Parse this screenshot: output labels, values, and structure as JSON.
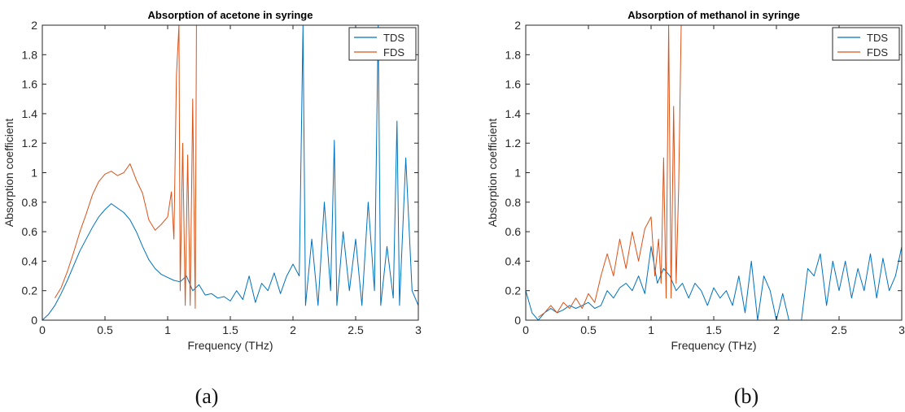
{
  "colors": {
    "tds": "#0072BD",
    "fds": "#D95319",
    "axis": "#262626",
    "frame": "#262626"
  },
  "chart_data": [
    {
      "type": "line",
      "panel_label": "(a)",
      "title": "Absorption of acetone in syringe",
      "xlabel": "Frequency (THz)",
      "ylabel": "Absorption coefficient",
      "xlim": [
        0,
        3
      ],
      "ylim": [
        0,
        2
      ],
      "grid": false,
      "legend_position": "top-right",
      "xticks": [
        "0",
        "0.5",
        "1",
        "1.5",
        "2",
        "2.5",
        "3"
      ],
      "yticks": [
        "0",
        "0.2",
        "0.4",
        "0.6",
        "0.8",
        "1",
        "1.2",
        "1.4",
        "1.6",
        "1.8",
        "2"
      ],
      "series": [
        {
          "name": "TDS",
          "color": "#0072BD",
          "x": [
            0,
            0.05,
            0.1,
            0.15,
            0.2,
            0.25,
            0.3,
            0.35,
            0.4,
            0.45,
            0.5,
            0.55,
            0.6,
            0.65,
            0.7,
            0.75,
            0.8,
            0.85,
            0.9,
            0.95,
            1.0,
            1.05,
            1.1,
            1.15,
            1.2,
            1.25,
            1.3,
            1.35,
            1.4,
            1.45,
            1.5,
            1.55,
            1.6,
            1.65,
            1.7,
            1.75,
            1.8,
            1.85,
            1.9,
            1.95,
            2.0,
            2.05,
            2.08,
            2.1,
            2.15,
            2.2,
            2.25,
            2.3,
            2.33,
            2.35,
            2.4,
            2.45,
            2.5,
            2.55,
            2.6,
            2.65,
            2.68,
            2.7,
            2.75,
            2.8,
            2.83,
            2.85,
            2.9,
            2.95,
            3.0
          ],
          "y": [
            0,
            0.04,
            0.1,
            0.18,
            0.27,
            0.37,
            0.47,
            0.55,
            0.63,
            0.7,
            0.75,
            0.79,
            0.76,
            0.73,
            0.68,
            0.6,
            0.5,
            0.41,
            0.35,
            0.31,
            0.29,
            0.27,
            0.26,
            0.3,
            0.2,
            0.24,
            0.17,
            0.18,
            0.15,
            0.16,
            0.13,
            0.2,
            0.14,
            0.3,
            0.12,
            0.25,
            0.2,
            0.32,
            0.18,
            0.3,
            0.38,
            0.3,
            2.0,
            0.1,
            0.55,
            0.1,
            0.8,
            0.2,
            1.22,
            0.1,
            0.6,
            0.2,
            0.55,
            0.1,
            0.8,
            0.2,
            2.0,
            0.1,
            0.5,
            0.15,
            1.35,
            0.1,
            1.1,
            0.2,
            0.1
          ]
        },
        {
          "name": "FDS",
          "color": "#D95319",
          "x": [
            0.1,
            0.15,
            0.2,
            0.25,
            0.3,
            0.35,
            0.4,
            0.45,
            0.5,
            0.55,
            0.6,
            0.65,
            0.7,
            0.75,
            0.8,
            0.85,
            0.9,
            0.95,
            1.0,
            1.03,
            1.05,
            1.07,
            1.09,
            1.1,
            1.12,
            1.14,
            1.16,
            1.18,
            1.2,
            1.22,
            1.23
          ],
          "y": [
            0.15,
            0.22,
            0.33,
            0.46,
            0.6,
            0.72,
            0.85,
            0.94,
            0.99,
            1.01,
            0.98,
            1.0,
            1.06,
            0.95,
            0.86,
            0.68,
            0.61,
            0.65,
            0.7,
            0.87,
            0.55,
            1.66,
            2.0,
            0.2,
            1.2,
            0.1,
            1.12,
            0.1,
            1.5,
            0.08,
            2.0
          ]
        }
      ]
    },
    {
      "type": "line",
      "panel_label": "(b)",
      "title": "Absorption of methanol in syringe",
      "xlabel": "Frequency (THz)",
      "ylabel": "Absorption coefficient",
      "xlim": [
        0,
        3
      ],
      "ylim": [
        0,
        2
      ],
      "grid": false,
      "legend_position": "top-right",
      "xticks": [
        "0",
        "0.5",
        "1",
        "1.5",
        "2",
        "2.5",
        "3"
      ],
      "yticks": [
        "0",
        "0.2",
        "0.4",
        "0.6",
        "0.8",
        "1",
        "1.2",
        "1.4",
        "1.6",
        "1.8",
        "2"
      ],
      "series": [
        {
          "name": "TDS",
          "color": "#0072BD",
          "x": [
            0,
            0.05,
            0.1,
            0.15,
            0.2,
            0.25,
            0.3,
            0.35,
            0.4,
            0.45,
            0.5,
            0.55,
            0.6,
            0.65,
            0.7,
            0.75,
            0.8,
            0.85,
            0.9,
            0.95,
            1.0,
            1.05,
            1.1,
            1.15,
            1.2,
            1.25,
            1.3,
            1.35,
            1.4,
            1.45,
            1.5,
            1.55,
            1.6,
            1.65,
            1.7,
            1.75,
            1.8,
            1.85,
            1.9,
            1.95,
            2.0,
            2.05,
            2.1,
            2.15,
            2.2,
            2.25,
            2.3,
            2.35,
            2.4,
            2.45,
            2.5,
            2.55,
            2.6,
            2.65,
            2.7,
            2.75,
            2.8,
            2.85,
            2.9,
            2.95,
            3.0
          ],
          "y": [
            0.2,
            0.05,
            0.0,
            0.05,
            0.08,
            0.05,
            0.07,
            0.1,
            0.08,
            0.1,
            0.12,
            0.08,
            0.1,
            0.2,
            0.15,
            0.22,
            0.25,
            0.2,
            0.3,
            0.18,
            0.5,
            0.25,
            0.35,
            0.3,
            0.2,
            0.25,
            0.15,
            0.25,
            0.2,
            0.1,
            0.22,
            0.15,
            0.2,
            0.1,
            0.3,
            0.05,
            0.4,
            0.0,
            0.3,
            0.2,
            0.0,
            0.18,
            0.0,
            0.0,
            0.0,
            0.35,
            0.3,
            0.45,
            0.1,
            0.4,
            0.2,
            0.4,
            0.15,
            0.35,
            0.2,
            0.45,
            0.15,
            0.42,
            0.2,
            0.3,
            0.5
          ]
        },
        {
          "name": "FDS",
          "color": "#D95319",
          "x": [
            0.1,
            0.15,
            0.2,
            0.25,
            0.3,
            0.35,
            0.4,
            0.45,
            0.5,
            0.55,
            0.6,
            0.65,
            0.7,
            0.75,
            0.8,
            0.85,
            0.9,
            0.95,
            1.0,
            1.03,
            1.06,
            1.08,
            1.1,
            1.12,
            1.14,
            1.16,
            1.18,
            1.2,
            1.22,
            1.24
          ],
          "y": [
            0.02,
            0.05,
            0.1,
            0.05,
            0.12,
            0.08,
            0.15,
            0.08,
            0.18,
            0.12,
            0.3,
            0.45,
            0.3,
            0.55,
            0.35,
            0.6,
            0.4,
            0.62,
            0.7,
            0.3,
            0.55,
            0.25,
            1.1,
            0.15,
            2.0,
            0.15,
            1.45,
            0.25,
            0.9,
            2.0
          ]
        }
      ]
    }
  ]
}
